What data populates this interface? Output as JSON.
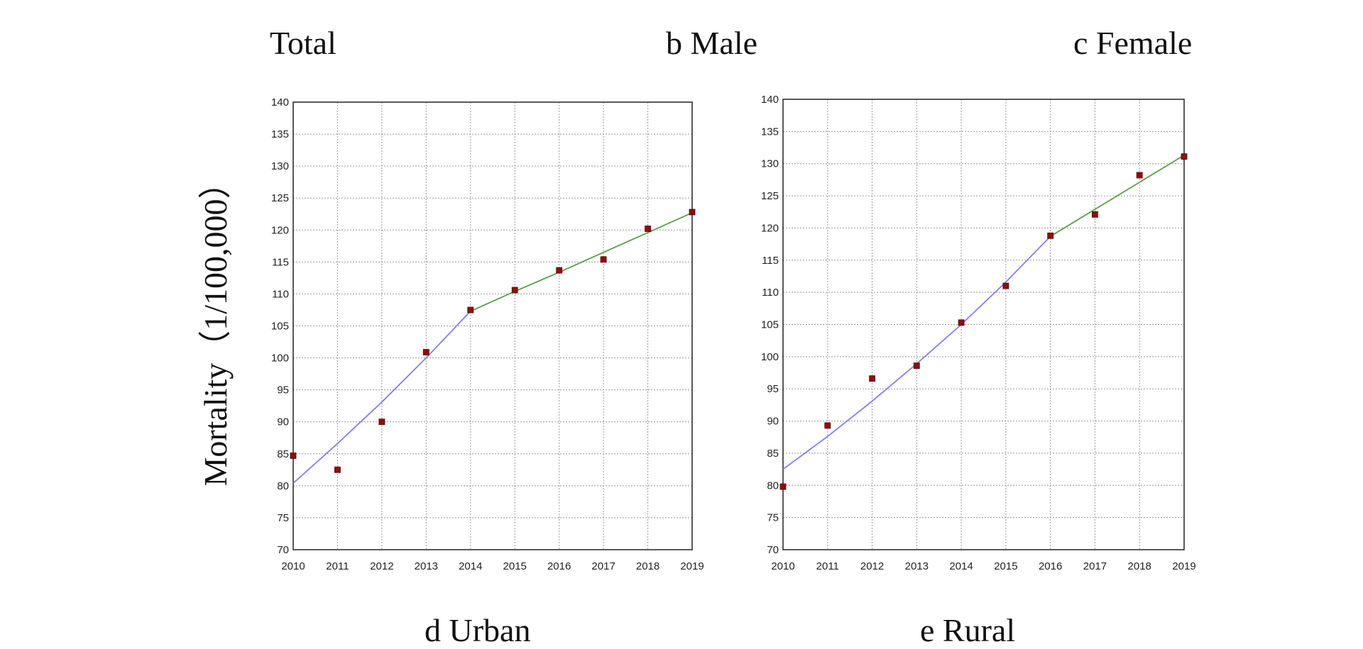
{
  "panel_labels": {
    "total": "Total",
    "male": "b Male",
    "female": "c Female",
    "urban": "d Urban",
    "rural": "e Rural"
  },
  "y_axis_label": "Mortality（1/100,000）",
  "colors": {
    "fit_segment_1": "#8080f0",
    "fit_segment_2": "#5a9e4a",
    "marker": "#8b0f0f",
    "grid": "#9a9a9a",
    "axis": "#222222"
  },
  "chart_data": [
    {
      "name": "Urban",
      "type": "scatter",
      "x": [
        2010,
        2011,
        2012,
        2013,
        2014,
        2015,
        2016,
        2017,
        2018,
        2019
      ],
      "y": [
        84.7,
        82.5,
        90.0,
        100.9,
        107.5,
        110.6,
        113.7,
        115.4,
        120.2,
        122.8
      ],
      "xlim": [
        2010,
        2019
      ],
      "ylim": [
        70,
        140
      ],
      "ytick_step": 5,
      "fit_segments": [
        {
          "x": [
            2010,
            2011,
            2012,
            2013,
            2014
          ],
          "y": [
            80.4,
            86.6,
            93.1,
            100.0,
            107.3
          ]
        },
        {
          "x": [
            2014,
            2015,
            2016,
            2017,
            2018,
            2019
          ],
          "y": [
            107.3,
            110.4,
            113.4,
            116.5,
            119.6,
            122.7
          ]
        }
      ]
    },
    {
      "name": "Rural",
      "type": "scatter",
      "x": [
        2010,
        2011,
        2012,
        2013,
        2014,
        2015,
        2016,
        2017,
        2018,
        2019
      ],
      "y": [
        79.8,
        89.3,
        96.6,
        98.6,
        105.3,
        111.0,
        118.8,
        122.1,
        128.2,
        131.1
      ],
      "xlim": [
        2010,
        2019
      ],
      "ylim": [
        70,
        140
      ],
      "ytick_step": 5,
      "fit_segments": [
        {
          "x": [
            2010,
            2011,
            2012,
            2013,
            2014,
            2015,
            2016
          ],
          "y": [
            82.5,
            87.6,
            93.1,
            98.9,
            105.0,
            111.6,
            118.7
          ]
        },
        {
          "x": [
            2016,
            2017,
            2018,
            2019
          ],
          "y": [
            118.7,
            122.9,
            127.1,
            131.3
          ]
        }
      ]
    }
  ]
}
